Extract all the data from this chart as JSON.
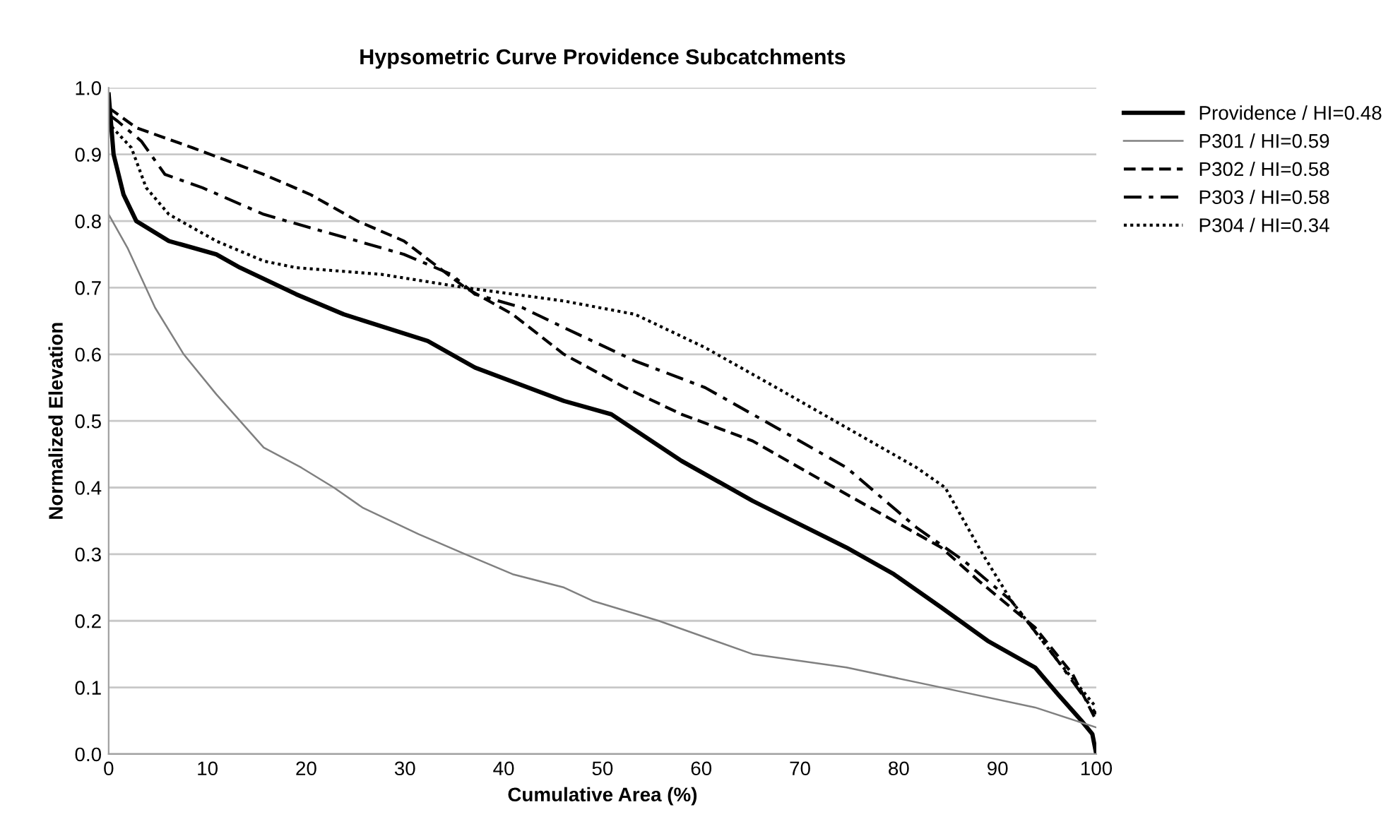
{
  "chart_data": {
    "type": "line",
    "title": "Hypsometric Curve Providence Subcatchments",
    "xlabel": "Cumulative Area (%)",
    "ylabel": "Normalized Elevation",
    "xlim": [
      0,
      100
    ],
    "xticks": [
      0,
      10,
      20,
      30,
      40,
      50,
      60,
      70,
      80,
      90,
      100
    ],
    "ylim": [
      0,
      1
    ],
    "yticks": [
      {
        "value": 0,
        "label": "0.0"
      },
      0.1,
      0.2,
      0.3,
      0.4,
      0.5,
      0.6,
      0.7,
      0.8,
      0.9,
      {
        "value": 1,
        "label": "1.0"
      }
    ],
    "grid": "y",
    "legend": "right",
    "marker": "none",
    "series": [
      {
        "name": "Providence / HI=0.48",
        "color": "#000000",
        "line_style": "solid",
        "x": [
          0,
          0.5,
          1.5,
          2.8,
          6.1,
          10.9,
          13.3,
          19,
          23.8,
          32.3,
          37.1,
          46.1,
          50.9,
          58,
          65.2,
          74.7,
          79.5,
          84.3,
          89,
          93.8,
          96.1,
          98.5,
          99.6,
          100
        ],
        "values": [
          0.99,
          0.9,
          0.84,
          0.8,
          0.77,
          0.75,
          0.73,
          0.69,
          0.66,
          0.62,
          0.58,
          0.53,
          0.51,
          0.44,
          0.38,
          0.31,
          0.27,
          0.22,
          0.17,
          0.13,
          0.09,
          0.05,
          0.03,
          0.0
        ]
      },
      {
        "name": "P301 / HI=0.59",
        "color": "#808080",
        "line_style": "solid",
        "x": [
          0,
          1.9,
          4.7,
          7.6,
          10.9,
          13.3,
          15.7,
          19.5,
          22.8,
          25.7,
          31.4,
          36.1,
          40.9,
          46.1,
          49,
          55.7,
          65.2,
          74.7,
          84.3,
          93.8,
          100
        ],
        "values": [
          0.81,
          0.76,
          0.67,
          0.6,
          0.54,
          0.5,
          0.46,
          0.43,
          0.4,
          0.37,
          0.33,
          0.3,
          0.27,
          0.25,
          0.23,
          0.2,
          0.15,
          0.13,
          0.1,
          0.07,
          0.04
        ]
      },
      {
        "name": "P302 / HI=0.58",
        "color": "#000000",
        "line_style": "dashed",
        "x": [
          0,
          2.8,
          8.5,
          15.7,
          20.4,
          25.2,
          29.9,
          36.1,
          40.9,
          46.1,
          52.3,
          58,
          65.2,
          72.3,
          79.5,
          84.3,
          88.1,
          93.8,
          97.6,
          100
        ],
        "values": [
          0.97,
          0.94,
          0.91,
          0.87,
          0.84,
          0.8,
          0.77,
          0.7,
          0.66,
          0.6,
          0.55,
          0.51,
          0.47,
          0.41,
          0.35,
          0.31,
          0.26,
          0.19,
          0.12,
          0.05
        ]
      },
      {
        "name": "P303 / HI=0.58",
        "color": "#000000",
        "line_style": "dashdot",
        "x": [
          0,
          0.9,
          3.3,
          5.7,
          9.5,
          15.7,
          20.4,
          25.2,
          29.9,
          34.7,
          37.1,
          41.9,
          46.1,
          53.3,
          60.4,
          67.6,
          74.7,
          81.8,
          86.6,
          91.4,
          96.1,
          100
        ],
        "values": [
          0.96,
          0.95,
          0.92,
          0.87,
          0.85,
          0.81,
          0.79,
          0.77,
          0.75,
          0.72,
          0.69,
          0.67,
          0.64,
          0.59,
          0.55,
          0.49,
          0.43,
          0.34,
          0.29,
          0.23,
          0.14,
          0.06
        ]
      },
      {
        "name": "P304 / HI=0.34",
        "color": "#000000",
        "line_style": "dotted",
        "x": [
          0,
          0.4,
          2.3,
          3.8,
          6.1,
          10.9,
          15.7,
          19,
          27.6,
          36.1,
          46.1,
          53.3,
          60.4,
          67.6,
          74.7,
          81.8,
          84.7,
          86.6,
          88.5,
          91.4,
          96.1,
          100
        ],
        "values": [
          0.95,
          0.94,
          0.91,
          0.85,
          0.81,
          0.77,
          0.74,
          0.73,
          0.72,
          0.7,
          0.68,
          0.66,
          0.61,
          0.55,
          0.49,
          0.43,
          0.4,
          0.35,
          0.3,
          0.23,
          0.14,
          0.07
        ]
      }
    ]
  }
}
